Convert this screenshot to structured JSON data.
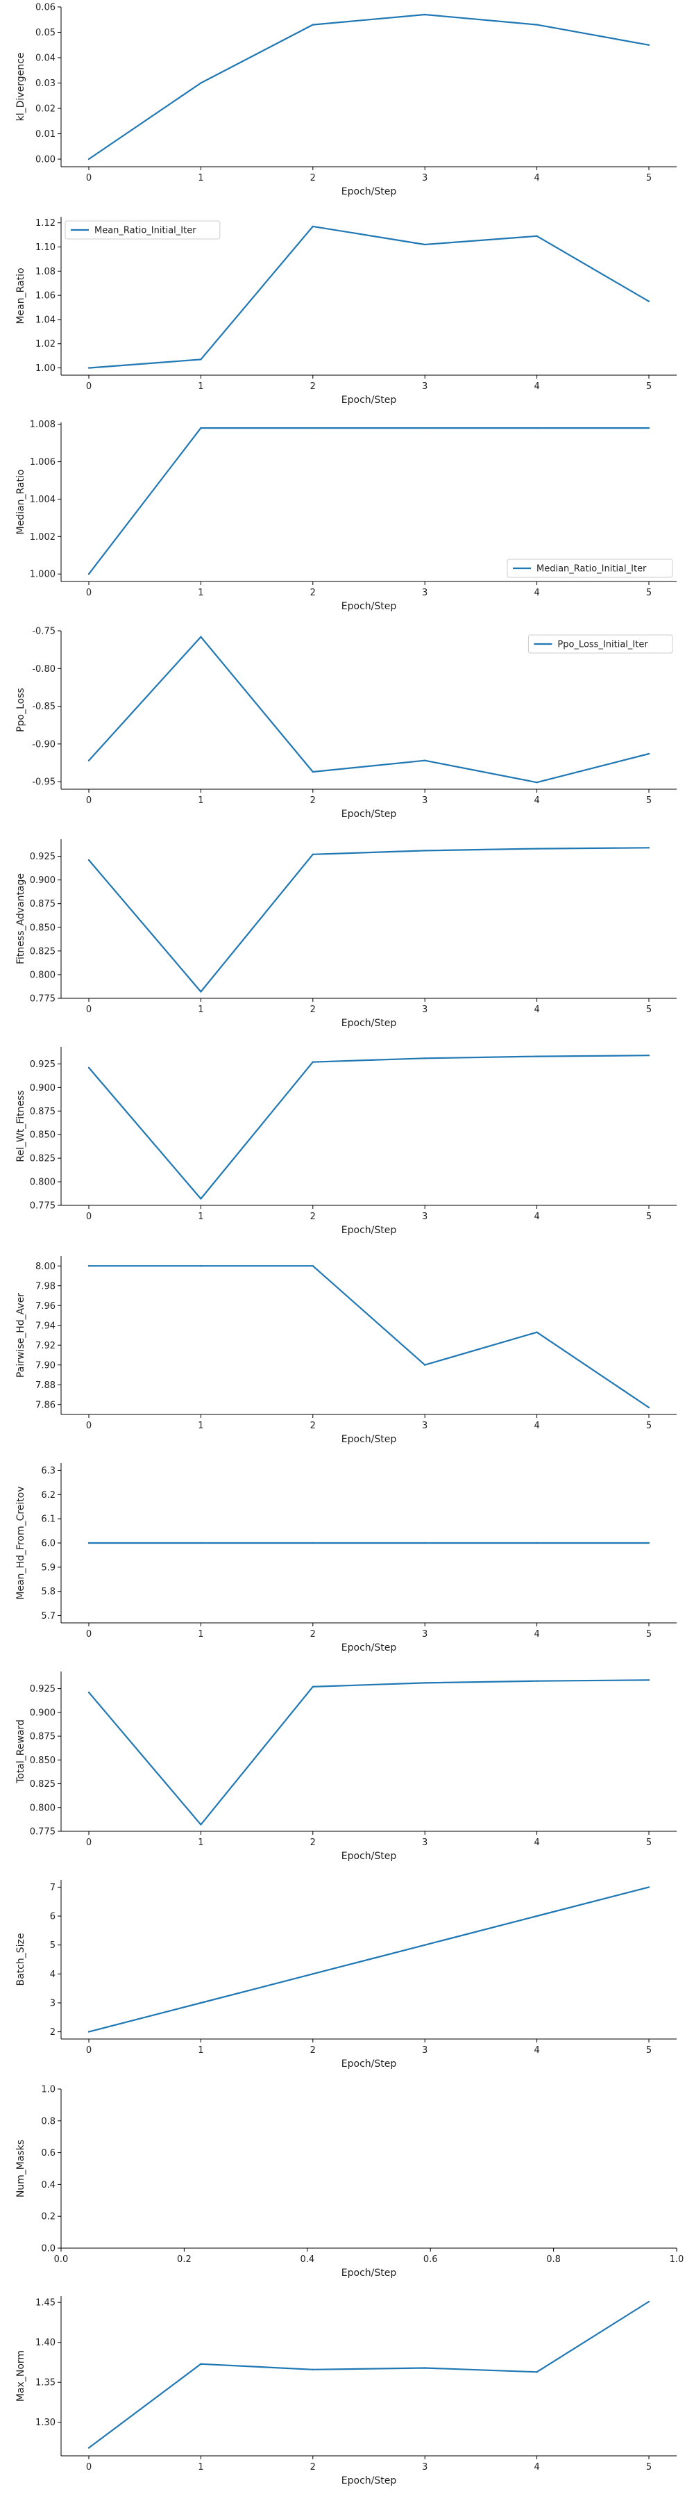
{
  "chart_data": [
    {
      "type": "line",
      "ylabel": "kl_Divergence",
      "xlabel": "Epoch/Step",
      "x": [
        0,
        1,
        2,
        3,
        4,
        5
      ],
      "xticks": [
        "0",
        "1",
        "2",
        "3",
        "4",
        "5"
      ],
      "ylim": [
        -0.003,
        0.06
      ],
      "yticks": [
        "0.00",
        "0.01",
        "0.02",
        "0.03",
        "0.04",
        "0.05",
        "0.06"
      ],
      "series": [
        {
          "values": [
            0.0,
            0.03,
            0.053,
            0.057,
            0.053,
            0.045
          ]
        }
      ],
      "legend": null,
      "color": "#1f77b4"
    },
    {
      "type": "line",
      "ylabel": "Mean_Ratio",
      "xlabel": "Epoch/Step",
      "x": [
        0,
        1,
        2,
        3,
        4,
        5
      ],
      "xticks": [
        "0",
        "1",
        "2",
        "3",
        "4",
        "5"
      ],
      "ylim": [
        0.994,
        1.125
      ],
      "yticks": [
        "1.00",
        "1.02",
        "1.04",
        "1.06",
        "1.08",
        "1.10",
        "1.12"
      ],
      "series": [
        {
          "name": "Mean_Ratio_Initial_Iter",
          "values": [
            1.0,
            1.007,
            1.117,
            1.102,
            1.109,
            1.055
          ]
        }
      ],
      "legend": "top-left",
      "color": "#1f77b4"
    },
    {
      "type": "line",
      "ylabel": "Median_Ratio",
      "xlabel": "Epoch/Step",
      "x": [
        0,
        1,
        2,
        3,
        4,
        5
      ],
      "xticks": [
        "0",
        "1",
        "2",
        "3",
        "4",
        "5"
      ],
      "ylim": [
        0.9996,
        1.0081
      ],
      "yticks": [
        "1.000",
        "1.002",
        "1.004",
        "1.006",
        "1.008"
      ],
      "series": [
        {
          "name": "Median_Ratio_Initial_Iter",
          "values": [
            1.0,
            1.0078,
            1.0078,
            1.0078,
            1.0078,
            1.0078
          ]
        }
      ],
      "legend": "bottom-right",
      "color": "#1f77b4"
    },
    {
      "type": "line",
      "ylabel": "Ppo_Loss",
      "xlabel": "Epoch/Step",
      "x": [
        0,
        1,
        2,
        3,
        4,
        5
      ],
      "xticks": [
        "0",
        "1",
        "2",
        "3",
        "4",
        "5"
      ],
      "ylim": [
        -0.96,
        -0.75
      ],
      "yticks": [
        "-0.95",
        "-0.90",
        "-0.85",
        "-0.80",
        "-0.75"
      ],
      "series": [
        {
          "name": "Ppo_Loss_Initial_Iter",
          "values": [
            -0.922,
            -0.758,
            -0.937,
            -0.922,
            -0.951,
            -0.913
          ]
        }
      ],
      "legend": "top-right",
      "color": "#1f77b4"
    },
    {
      "type": "line",
      "ylabel": "Fitness_Advantage",
      "xlabel": "Epoch/Step",
      "x": [
        0,
        1,
        2,
        3,
        4,
        5
      ],
      "xticks": [
        "0",
        "1",
        "2",
        "3",
        "4",
        "5"
      ],
      "ylim": [
        0.775,
        0.943
      ],
      "yticks": [
        "0.775",
        "0.800",
        "0.825",
        "0.850",
        "0.875",
        "0.900",
        "0.925"
      ],
      "series": [
        {
          "values": [
            0.921,
            0.782,
            0.927,
            0.931,
            0.933,
            0.934
          ]
        }
      ],
      "legend": null,
      "color": "#1f77b4"
    },
    {
      "type": "line",
      "ylabel": "Rel_Wt_Fitness",
      "xlabel": "Epoch/Step",
      "x": [
        0,
        1,
        2,
        3,
        4,
        5
      ],
      "xticks": [
        "0",
        "1",
        "2",
        "3",
        "4",
        "5"
      ],
      "ylim": [
        0.775,
        0.943
      ],
      "yticks": [
        "0.775",
        "0.800",
        "0.825",
        "0.850",
        "0.875",
        "0.900",
        "0.925"
      ],
      "series": [
        {
          "values": [
            0.921,
            0.782,
            0.927,
            0.931,
            0.933,
            0.934
          ]
        }
      ],
      "legend": null,
      "color": "#1f77b4"
    },
    {
      "type": "line",
      "ylabel": "Pairwise_Hd_Aver",
      "xlabel": "Epoch/Step",
      "x": [
        0,
        1,
        2,
        3,
        4,
        5
      ],
      "xticks": [
        "0",
        "1",
        "2",
        "3",
        "4",
        "5"
      ],
      "ylim": [
        7.85,
        8.01
      ],
      "yticks": [
        "7.86",
        "7.88",
        "7.90",
        "7.92",
        "7.94",
        "7.96",
        "7.98",
        "8.00"
      ],
      "series": [
        {
          "values": [
            8.0,
            8.0,
            8.0,
            7.9,
            7.933,
            7.857
          ]
        }
      ],
      "legend": null,
      "color": "#1f77b4"
    },
    {
      "type": "line",
      "ylabel": "Mean_Hd_From_Creitov",
      "xlabel": "Epoch/Step",
      "x": [
        0,
        1,
        2,
        3,
        4,
        5
      ],
      "xticks": [
        "0",
        "1",
        "2",
        "3",
        "4",
        "5"
      ],
      "ylim": [
        5.67,
        6.33
      ],
      "yticks": [
        "5.7",
        "5.8",
        "5.9",
        "6.0",
        "6.1",
        "6.2",
        "6.3"
      ],
      "series": [
        {
          "values": [
            6.0,
            6.0,
            6.0,
            6.0,
            6.0,
            6.0
          ]
        }
      ],
      "legend": null,
      "color": "#1f77b4"
    },
    {
      "type": "line",
      "ylabel": "Total_Reward",
      "xlabel": "Epoch/Step",
      "x": [
        0,
        1,
        2,
        3,
        4,
        5
      ],
      "xticks": [
        "0",
        "1",
        "2",
        "3",
        "4",
        "5"
      ],
      "ylim": [
        0.775,
        0.943
      ],
      "yticks": [
        "0.775",
        "0.800",
        "0.825",
        "0.850",
        "0.875",
        "0.900",
        "0.925"
      ],
      "series": [
        {
          "values": [
            0.921,
            0.782,
            0.927,
            0.931,
            0.933,
            0.934
          ]
        }
      ],
      "legend": null,
      "color": "#1f77b4"
    },
    {
      "type": "line",
      "ylabel": "Batch_Size",
      "xlabel": "Epoch/Step",
      "x": [
        0,
        1,
        2,
        3,
        4,
        5
      ],
      "xticks": [
        "0",
        "1",
        "2",
        "3",
        "4",
        "5"
      ],
      "ylim": [
        1.75,
        7.25
      ],
      "yticks": [
        "2",
        "3",
        "4",
        "5",
        "6",
        "7"
      ],
      "series": [
        {
          "values": [
            2,
            3,
            4,
            5,
            6,
            7
          ]
        }
      ],
      "legend": null,
      "color": "#1f77b4"
    },
    {
      "type": "line",
      "ylabel": "Num_Masks",
      "xlabel": "Epoch/Step",
      "x": [],
      "xlim": [
        0.0,
        1.0
      ],
      "ylim": [
        0.0,
        1.0
      ],
      "xticks": [
        "0.0",
        "0.2",
        "0.4",
        "0.6",
        "0.8",
        "1.0"
      ],
      "yticks": [
        "0.0",
        "0.2",
        "0.4",
        "0.6",
        "0.8",
        "1.0"
      ],
      "series": [],
      "legend": null,
      "color": "#1f77b4"
    },
    {
      "type": "line",
      "ylabel": "Max_Norm",
      "xlabel": "Epoch/Step",
      "x": [
        0,
        1,
        2,
        3,
        4,
        5
      ],
      "xticks": [
        "0",
        "1",
        "2",
        "3",
        "4",
        "5"
      ],
      "ylim": [
        1.258,
        1.458
      ],
      "yticks": [
        "1.30",
        "1.35",
        "1.40",
        "1.45"
      ],
      "series": [
        {
          "values": [
            1.268,
            1.373,
            1.366,
            1.368,
            1.363,
            1.451
          ]
        }
      ],
      "legend": null,
      "color": "#1f77b4"
    }
  ]
}
